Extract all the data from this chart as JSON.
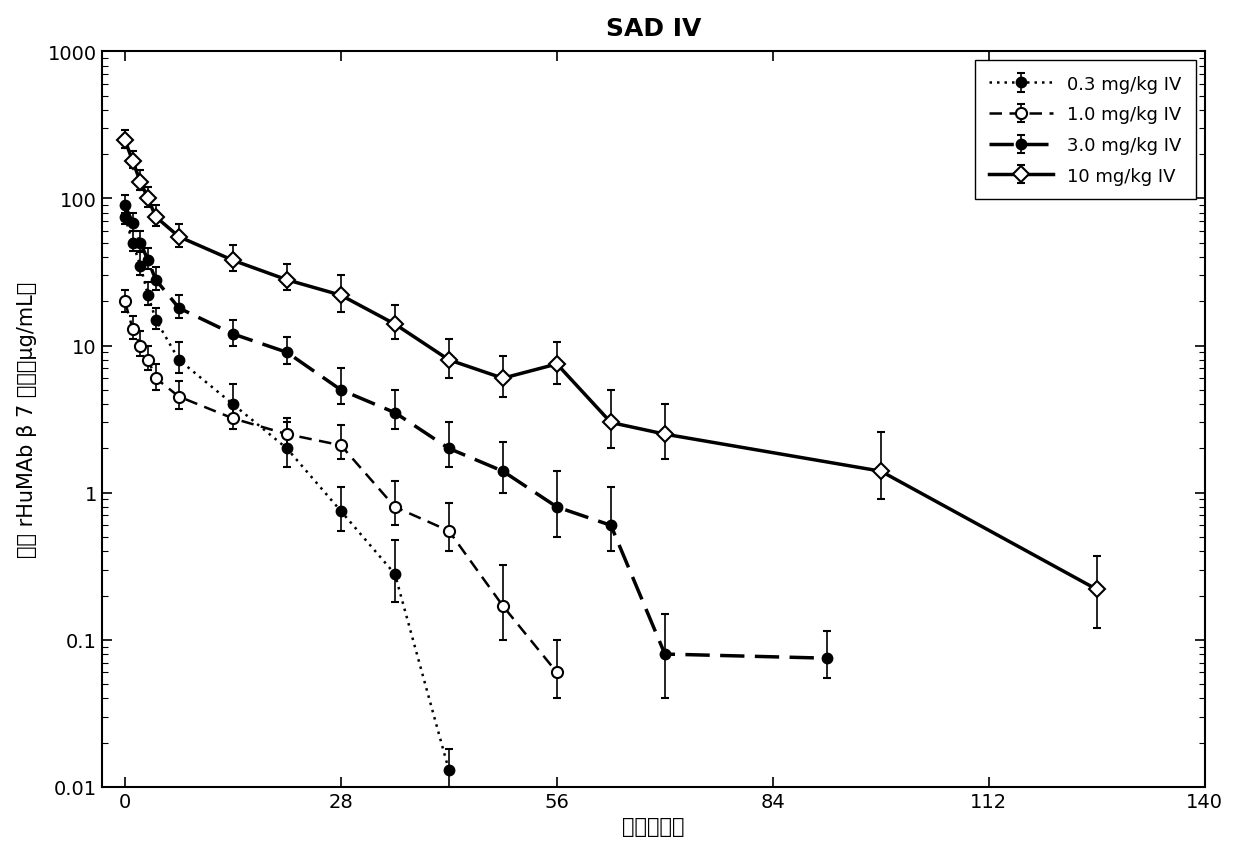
{
  "title": "SAD IV",
  "xlabel": "时间（天）",
  "ylabel": "血清 rHuMAb β 7 浓度（μg/mL）",
  "xlim": [
    -3,
    140
  ],
  "ylim_log": [
    0.01,
    1000
  ],
  "xticks": [
    0,
    28,
    56,
    84,
    112,
    140
  ],
  "background_color": "#ffffff",
  "series": [
    {
      "label": "0.3 mg/kg IV",
      "linestyle": "dotted",
      "linewidth": 1.8,
      "marker": "o",
      "markersize": 7,
      "markerfacecolor": "black",
      "markeredgecolor": "black",
      "color": "black",
      "x": [
        0,
        1,
        2,
        3,
        4,
        7,
        14,
        21,
        28,
        35,
        42
      ],
      "y": [
        75,
        50,
        35,
        22,
        15,
        8,
        4,
        2.0,
        0.75,
        0.28,
        0.013
      ],
      "yerr_lo": [
        8,
        6,
        5,
        3,
        2,
        1.5,
        0.8,
        0.5,
        0.2,
        0.1,
        0.003
      ],
      "yerr_hi": [
        15,
        10,
        8,
        5,
        3,
        2.5,
        1.5,
        1.0,
        0.35,
        0.2,
        0.005
      ]
    },
    {
      "label": "1.0 mg/kg IV",
      "linestyle": "dashed_light",
      "linewidth": 1.8,
      "marker": "o",
      "markersize": 8,
      "markerfacecolor": "white",
      "markeredgecolor": "black",
      "color": "black",
      "x": [
        0,
        1,
        2,
        3,
        4,
        7,
        14,
        21,
        28,
        35,
        42,
        49,
        56
      ],
      "y": [
        20,
        13,
        10,
        8,
        6,
        4.5,
        3.2,
        2.5,
        2.1,
        0.8,
        0.55,
        0.17,
        0.06
      ],
      "yerr_lo": [
        3,
        2,
        1.5,
        1.2,
        1.0,
        0.8,
        0.5,
        0.4,
        0.4,
        0.2,
        0.15,
        0.07,
        0.02
      ],
      "yerr_hi": [
        4,
        3,
        2.5,
        2.0,
        1.5,
        1.2,
        0.8,
        0.7,
        0.8,
        0.4,
        0.3,
        0.15,
        0.04
      ]
    },
    {
      "label": "3.0 mg/kg IV",
      "linestyle": "dashed_heavy",
      "linewidth": 2.5,
      "marker": "o",
      "markersize": 7,
      "markerfacecolor": "black",
      "markeredgecolor": "black",
      "color": "black",
      "x": [
        0,
        1,
        2,
        3,
        4,
        7,
        14,
        21,
        28,
        35,
        42,
        49,
        56,
        63,
        70,
        91
      ],
      "y": [
        90,
        68,
        50,
        38,
        28,
        18,
        12,
        9,
        5,
        3.5,
        2.0,
        1.4,
        0.8,
        0.6,
        0.08,
        0.075
      ],
      "yerr_lo": [
        10,
        8,
        6,
        5,
        4,
        2.5,
        2,
        1.5,
        1.0,
        0.8,
        0.5,
        0.4,
        0.3,
        0.2,
        0.04,
        0.02
      ],
      "yerr_hi": [
        15,
        12,
        10,
        8,
        6,
        4,
        3,
        2.5,
        2.0,
        1.5,
        1.0,
        0.8,
        0.6,
        0.5,
        0.07,
        0.04
      ]
    },
    {
      "label": "10 mg/kg IV",
      "linestyle": "solid",
      "linewidth": 2.5,
      "marker": "D",
      "markersize": 8,
      "markerfacecolor": "white",
      "markeredgecolor": "black",
      "color": "black",
      "x": [
        0,
        1,
        2,
        3,
        4,
        7,
        14,
        21,
        28,
        35,
        42,
        49,
        56,
        63,
        70,
        98,
        126
      ],
      "y": [
        250,
        180,
        130,
        100,
        75,
        55,
        38,
        28,
        22,
        14,
        8,
        6,
        7.5,
        3.0,
        2.5,
        1.4,
        0.22
      ],
      "yerr_lo": [
        30,
        20,
        15,
        12,
        10,
        8,
        6,
        4,
        5,
        3,
        2,
        1.5,
        2,
        1.0,
        0.8,
        0.5,
        0.1
      ],
      "yerr_hi": [
        40,
        30,
        25,
        20,
        15,
        12,
        10,
        8,
        8,
        5,
        3,
        2.5,
        3,
        2.0,
        1.5,
        1.2,
        0.15
      ]
    }
  ]
}
